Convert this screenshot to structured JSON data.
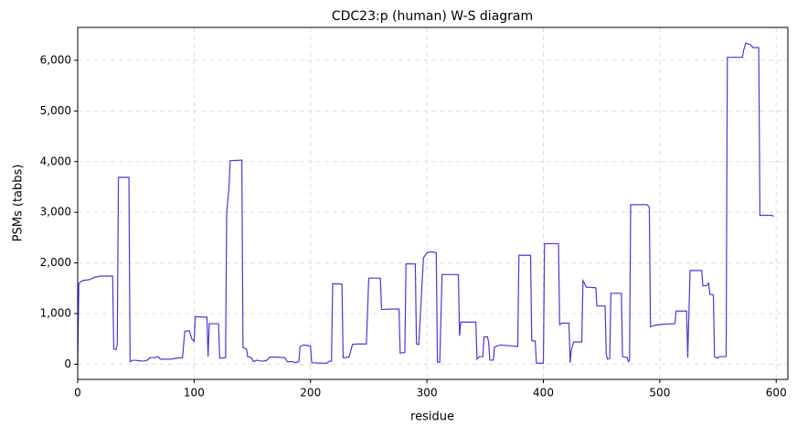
{
  "chart_data": {
    "type": "line",
    "title": "CDC23:p (human) W-S diagram",
    "x_label": "residue",
    "y_label": "PSMs (tabbs)",
    "color": "#5b30d6",
    "grid": true,
    "x": [
      0,
      1,
      4,
      10,
      15,
      20,
      30,
      31,
      33,
      34,
      35,
      44,
      45,
      48,
      52,
      56,
      60,
      62,
      66,
      69,
      71,
      80,
      85,
      88,
      90,
      92,
      96,
      98,
      100,
      101,
      108,
      111,
      112,
      113,
      121,
      122,
      127,
      128,
      130,
      131,
      141,
      142,
      145,
      146,
      149,
      151,
      154,
      158,
      162,
      165,
      170,
      178,
      180,
      185,
      187,
      190,
      191,
      194,
      197,
      200,
      201,
      210,
      214,
      216,
      218,
      219,
      227,
      228,
      233,
      236,
      240,
      248,
      250,
      260,
      261,
      270,
      276,
      277,
      281,
      282,
      290,
      291,
      293,
      297,
      300,
      304,
      308,
      309,
      311,
      313,
      327,
      328,
      329,
      342,
      343,
      345,
      348,
      349,
      352,
      353,
      354,
      357,
      358,
      363,
      378,
      379,
      389,
      390,
      393,
      394,
      400,
      401,
      413,
      414,
      416,
      422,
      423,
      424,
      426,
      433,
      434,
      437,
      445,
      446,
      453,
      454,
      455,
      457,
      458,
      467,
      468,
      472,
      473,
      474,
      475,
      489,
      491,
      492,
      496,
      503,
      513,
      514,
      523,
      524,
      526,
      536,
      537,
      540,
      542,
      543,
      546,
      547,
      550,
      551,
      557,
      558,
      571,
      572,
      574,
      578,
      580,
      585,
      586,
      596,
      598
    ],
    "values": [
      0,
      1600,
      1650,
      1670,
      1720,
      1740,
      1740,
      300,
      290,
      400,
      3690,
      3690,
      50,
      80,
      70,
      60,
      80,
      130,
      130,
      150,
      100,
      100,
      120,
      130,
      120,
      650,
      660,
      500,
      450,
      940,
      930,
      930,
      150,
      800,
      800,
      120,
      130,
      3000,
      3500,
      4020,
      4030,
      330,
      300,
      150,
      130,
      50,
      80,
      60,
      70,
      140,
      140,
      130,
      50,
      50,
      30,
      50,
      350,
      380,
      370,
      360,
      30,
      20,
      20,
      60,
      60,
      1590,
      1580,
      130,
      140,
      390,
      400,
      400,
      1700,
      1700,
      1080,
      1090,
      1090,
      220,
      230,
      1980,
      1980,
      400,
      390,
      2100,
      2200,
      2220,
      2200,
      40,
      40,
      1770,
      1770,
      560,
      830,
      830,
      100,
      150,
      150,
      540,
      540,
      430,
      80,
      80,
      340,
      380,
      350,
      2150,
      2150,
      460,
      460,
      20,
      20,
      2380,
      2380,
      780,
      810,
      810,
      30,
      280,
      440,
      440,
      1650,
      1520,
      1510,
      1150,
      1150,
      200,
      100,
      110,
      1400,
      1400,
      150,
      130,
      50,
      80,
      3150,
      3150,
      3100,
      740,
      770,
      790,
      800,
      1050,
      1050,
      130,
      1850,
      1850,
      1550,
      1550,
      1600,
      1380,
      1370,
      150,
      120,
      150,
      150,
      6060,
      6060,
      6200,
      6340,
      6310,
      6250,
      6250,
      2940,
      2940,
      2920
    ],
    "xlim": [
      0,
      610
    ],
    "ylim": [
      -300,
      6650
    ],
    "xticks": [
      0,
      100,
      200,
      300,
      400,
      500,
      600
    ],
    "yticks": [
      0,
      {
        "value": 1000,
        "label": "1,000"
      },
      {
        "value": 2000,
        "label": "2,000"
      },
      {
        "value": 3000,
        "label": "3,000"
      },
      {
        "value": 4000,
        "label": "4,000"
      },
      {
        "value": 5000,
        "label": "5,000"
      },
      {
        "value": 6000,
        "label": "6,000"
      }
    ]
  }
}
